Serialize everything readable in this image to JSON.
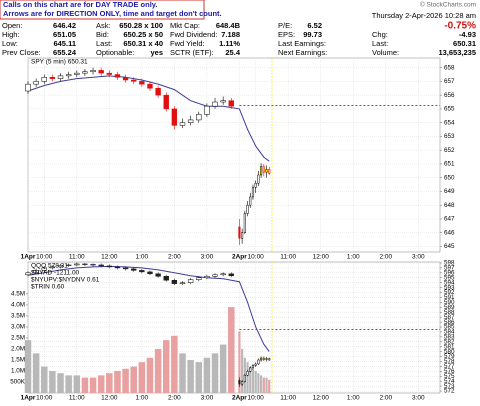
{
  "header": {
    "notice": [
      "Calls on this chart are for DAY TRADE only.",
      "Arrows are for DIRECTION ONLY, time and target don't count."
    ],
    "copyright": "© StockCharts.com",
    "datetime": "Thursday 2-Apr-2026 10:28 am",
    "change_pct": "-0.75%"
  },
  "quote": {
    "rows": [
      [
        [
          "Open:",
          "646.42"
        ],
        [
          "Ask:",
          "650.28 x 100"
        ],
        [
          "Mkt Cap:",
          "648.4B"
        ],
        [
          "P/E:",
          "6.52"
        ]
      ],
      [
        [
          "High:",
          "651.05"
        ],
        [
          "Bid:",
          "650.25 x 50"
        ],
        [
          "Fwd Dividend:",
          "7.188"
        ],
        [
          "EPS:",
          "99.73"
        ]
      ],
      [
        [
          "Low:",
          "645.11"
        ],
        [
          "Last:",
          "650.31 x 40"
        ],
        [
          "Fwd Yield:",
          "1.11%"
        ],
        [
          "Last Earnings:"
        ]
      ],
      [
        [
          "Prev Close:",
          "655.24"
        ],
        [
          "Optionable:",
          "yes"
        ],
        [
          "SCTR (ETF):",
          "25.4"
        ],
        [
          "Next Earnings:"
        ]
      ]
    ],
    "side": [
      [
        "Chg:",
        "-4.93"
      ],
      [
        "Last:",
        "650.31"
      ],
      [
        "Volume:",
        "13,653,235"
      ]
    ]
  },
  "chart_data": [
    {
      "type": "candlestick",
      "legend": [
        "SPY (5 min) 650.31"
      ],
      "x": [
        0,
        3,
        6,
        9,
        12,
        15,
        18,
        21,
        24,
        27,
        30,
        33,
        36,
        39,
        42,
        45,
        48,
        51,
        54,
        57,
        60,
        63,
        66,
        69,
        72,
        75,
        78,
        79,
        80,
        81,
        82,
        83,
        84,
        85,
        86,
        87,
        88,
        89
      ],
      "ohlc": [
        [
          656.3,
          657.0,
          656.1,
          656.8
        ],
        [
          656.8,
          657.2,
          656.6,
          657.0
        ],
        [
          657.0,
          657.5,
          656.8,
          657.3
        ],
        [
          657.3,
          657.5,
          657.0,
          657.2
        ],
        [
          657.2,
          657.6,
          657.0,
          657.4
        ],
        [
          657.4,
          657.7,
          657.2,
          657.5
        ],
        [
          657.5,
          657.8,
          657.3,
          657.6
        ],
        [
          657.6,
          657.9,
          657.4,
          657.7
        ],
        [
          657.7,
          658.0,
          657.5,
          657.8
        ],
        [
          657.8,
          658.0,
          657.4,
          657.6
        ],
        [
          657.6,
          657.8,
          657.3,
          657.5
        ],
        [
          657.5,
          657.7,
          657.1,
          657.3
        ],
        [
          657.3,
          657.5,
          656.9,
          657.1
        ],
        [
          657.1,
          657.3,
          656.8,
          657.0
        ],
        [
          657.0,
          657.2,
          656.6,
          656.8
        ],
        [
          656.8,
          657.0,
          656.3,
          656.5
        ],
        [
          656.5,
          656.7,
          655.8,
          656.0
        ],
        [
          656.0,
          656.2,
          654.8,
          655.0
        ],
        [
          655.0,
          655.2,
          653.5,
          653.8
        ],
        [
          653.8,
          654.3,
          653.6,
          654.0
        ],
        [
          654.0,
          654.5,
          653.8,
          654.2
        ],
        [
          654.2,
          654.8,
          654.0,
          654.6
        ],
        [
          654.6,
          655.4,
          654.4,
          655.2
        ],
        [
          655.2,
          655.8,
          655.0,
          655.5
        ],
        [
          655.5,
          655.9,
          655.3,
          655.6
        ],
        [
          655.6,
          655.8,
          655.0,
          655.2
        ],
        [
          646.42,
          647.0,
          645.11,
          645.6
        ],
        [
          645.6,
          646.3,
          645.2,
          646.0
        ],
        [
          646.0,
          647.6,
          645.9,
          647.4
        ],
        [
          647.4,
          648.3,
          647.2,
          648.0
        ],
        [
          648.0,
          648.9,
          647.8,
          648.6
        ],
        [
          648.6,
          649.5,
          648.4,
          649.3
        ],
        [
          649.3,
          649.8,
          648.9,
          649.6
        ],
        [
          649.6,
          650.5,
          649.4,
          650.2
        ],
        [
          650.2,
          651.05,
          650.0,
          650.8
        ],
        [
          650.8,
          651.0,
          650.1,
          650.4
        ],
        [
          650.4,
          650.9,
          650.0,
          650.6
        ],
        [
          650.6,
          650.8,
          650.2,
          650.31
        ]
      ],
      "up_color": "#ffffff",
      "down_color": "#e01010",
      "highlight_color": "#ffe800",
      "highlight_from_x": 86,
      "ma": {
        "color": "#3c3c9c",
        "x": [
          0,
          6,
          12,
          18,
          24,
          30,
          36,
          42,
          48,
          54,
          60,
          66,
          72,
          78,
          81,
          84,
          87,
          89
        ],
        "values": [
          656.3,
          656.7,
          657.0,
          657.2,
          657.3,
          657.4,
          657.3,
          657.1,
          656.8,
          656.4,
          655.6,
          655.2,
          655.2,
          655.0,
          653.5,
          652.3,
          651.5,
          651.2
        ]
      },
      "ref_line": {
        "value": 655.24,
        "from_x": 78,
        "color": "#2020a0"
      },
      "now_x": 90,
      "xlim": [
        0,
        152
      ],
      "ylim": [
        644.6,
        658.7
      ],
      "yticks": [
        645,
        646,
        647,
        648,
        649,
        650,
        651,
        652,
        653,
        654,
        655,
        656,
        657,
        658
      ],
      "xticks": [
        {
          "value": 0,
          "label": "1Apr"
        },
        {
          "value": 6,
          "label": "10:00"
        },
        {
          "value": 18,
          "label": "11:00"
        },
        {
          "value": 30,
          "label": "12:00"
        },
        {
          "value": 42,
          "label": "1:00"
        },
        {
          "value": 54,
          "label": "2:00"
        },
        {
          "value": 66,
          "label": "3:00"
        },
        {
          "value": 78,
          "label": "2Apr"
        },
        {
          "value": 84,
          "label": "10:00"
        },
        {
          "value": 96,
          "label": "11:00"
        },
        {
          "value": 108,
          "label": "12:00"
        },
        {
          "value": 120,
          "label": "1:00"
        },
        {
          "value": 132,
          "label": "2:00"
        },
        {
          "value": 144,
          "label": "3:00"
        }
      ],
      "grid": true
    },
    {
      "type": "candlestick",
      "legend": [
        "QQQ 578.31",
        "$NYAD -1211.00",
        "$NYUPV:$NYDNV 0.61",
        "$TRIN 0.60"
      ],
      "x": [
        0,
        3,
        6,
        9,
        12,
        15,
        18,
        21,
        24,
        27,
        30,
        33,
        36,
        39,
        42,
        45,
        48,
        51,
        54,
        57,
        60,
        63,
        66,
        69,
        72,
        75,
        78,
        79,
        80,
        81,
        82,
        83,
        84,
        85,
        86,
        87,
        88,
        89
      ],
      "ohlc": [
        [
          595.6,
          596.3,
          595.3,
          596.0
        ],
        [
          596.0,
          596.8,
          595.7,
          596.5
        ],
        [
          596.5,
          597.3,
          596.2,
          597.0
        ],
        [
          597.0,
          597.5,
          596.7,
          597.2
        ],
        [
          597.2,
          597.8,
          596.9,
          597.5
        ],
        [
          597.5,
          597.9,
          597.2,
          597.6
        ],
        [
          597.6,
          598.1,
          597.3,
          597.8
        ],
        [
          597.8,
          598.0,
          597.4,
          597.7
        ],
        [
          597.7,
          597.9,
          597.3,
          597.6
        ],
        [
          597.6,
          597.9,
          597.1,
          597.4
        ],
        [
          597.4,
          597.7,
          596.9,
          597.2
        ],
        [
          597.2,
          597.5,
          596.7,
          597.0
        ],
        [
          597.0,
          597.3,
          596.5,
          596.8
        ],
        [
          596.8,
          597.1,
          596.2,
          596.5
        ],
        [
          596.5,
          596.8,
          595.9,
          596.2
        ],
        [
          596.2,
          596.5,
          595.5,
          595.8
        ],
        [
          595.8,
          596.1,
          595.0,
          595.3
        ],
        [
          595.3,
          595.6,
          594.2,
          594.5
        ],
        [
          594.5,
          594.8,
          593.5,
          593.8
        ],
        [
          593.8,
          594.3,
          593.5,
          594.0
        ],
        [
          594.0,
          594.9,
          593.7,
          594.6
        ],
        [
          594.6,
          595.3,
          594.3,
          595.0
        ],
        [
          595.0,
          595.6,
          594.7,
          595.3
        ],
        [
          595.3,
          595.9,
          595.0,
          595.6
        ],
        [
          595.6,
          596.1,
          595.3,
          595.8
        ],
        [
          595.8,
          596.1,
          595.1,
          595.4
        ],
        [
          574.2,
          574.8,
          572.8,
          573.4
        ],
        [
          573.4,
          574.2,
          573.0,
          573.9
        ],
        [
          573.9,
          575.5,
          573.7,
          575.2
        ],
        [
          575.2,
          576.3,
          575.0,
          576.0
        ],
        [
          576.0,
          577.0,
          575.8,
          576.7
        ],
        [
          576.7,
          577.5,
          576.4,
          577.2
        ],
        [
          577.2,
          577.8,
          576.9,
          577.5
        ],
        [
          577.5,
          578.6,
          577.3,
          578.3
        ],
        [
          578.3,
          579.0,
          578.0,
          578.7
        ],
        [
          578.7,
          579.0,
          578.1,
          578.4
        ],
        [
          578.4,
          578.9,
          578.0,
          578.6
        ],
        [
          578.6,
          578.8,
          578.1,
          578.31
        ]
      ],
      "up_color": "#ffffff",
      "down_color": "#202020",
      "highlight_color": "#ffe800",
      "highlight_from_x": 86,
      "ma": {
        "color": "#3c3c9c",
        "x": [
          0,
          6,
          12,
          18,
          24,
          30,
          36,
          42,
          48,
          54,
          60,
          66,
          72,
          78,
          81,
          84,
          87,
          89
        ],
        "values": [
          595.5,
          596.0,
          596.6,
          597.0,
          597.2,
          597.3,
          597.2,
          597.0,
          596.6,
          596.0,
          595.4,
          595.0,
          594.8,
          594.2,
          590.0,
          585.0,
          581.5,
          580.0
        ]
      },
      "volume": {
        "up_color": "#b8b8b8",
        "down_color": "#e8a0a0",
        "values": [
          2400000,
          1800000,
          1200000,
          1000000,
          900000,
          800000,
          800000,
          700000,
          700000,
          800000,
          900000,
          1000000,
          1100000,
          1200000,
          1400000,
          1600000,
          2000000,
          2400000,
          2600000,
          1800000,
          1500000,
          1400000,
          1600000,
          1800000,
          2200000,
          3900000,
          2800000,
          2000000,
          1600000,
          1400000,
          1200000,
          1100000,
          1000000,
          900000,
          800000,
          700000,
          700000,
          600000
        ],
        "ylim": [
          0,
          5950000
        ],
        "yticks": [
          {
            "value": 500000,
            "label": "500K"
          },
          {
            "value": 1000000,
            "label": "1.0M"
          },
          {
            "value": 1500000,
            "label": "1.5M"
          },
          {
            "value": 2000000,
            "label": "2.0M"
          },
          {
            "value": 2500000,
            "label": "2.5M"
          },
          {
            "value": 3000000,
            "label": "3.0M"
          },
          {
            "value": 3500000,
            "label": "3.5M"
          },
          {
            "value": 4000000,
            "label": "4.0M"
          },
          {
            "value": 4500000,
            "label": "4.5M"
          }
        ]
      },
      "ref_line": {
        "value": 584.5,
        "from_x": 78,
        "color": "#2020a0"
      },
      "now_x": 90,
      "xlim": [
        0,
        152
      ],
      "ylim": [
        571.6,
        598.2
      ],
      "yticks": [
        572,
        573,
        574,
        575,
        576,
        577,
        578,
        579,
        580,
        581,
        582,
        583,
        584,
        585,
        586,
        587,
        588,
        589,
        590,
        591,
        592,
        593,
        594,
        595,
        596,
        597,
        598
      ],
      "xticks": [
        {
          "value": 0,
          "label": "1Apr"
        },
        {
          "value": 6,
          "label": "10:00"
        },
        {
          "value": 18,
          "label": "11:00"
        },
        {
          "value": 30,
          "label": "12:00"
        },
        {
          "value": 42,
          "label": "1:00"
        },
        {
          "value": 54,
          "label": "2:00"
        },
        {
          "value": 66,
          "label": "3:00"
        },
        {
          "value": 78,
          "label": "2Apr"
        },
        {
          "value": 84,
          "label": "10:00"
        },
        {
          "value": 96,
          "label": "11:00"
        },
        {
          "value": 108,
          "label": "12:00"
        },
        {
          "value": 120,
          "label": "1:00"
        },
        {
          "value": 132,
          "label": "2:00"
        },
        {
          "value": 144,
          "label": "3:00"
        }
      ],
      "grid": true
    }
  ]
}
